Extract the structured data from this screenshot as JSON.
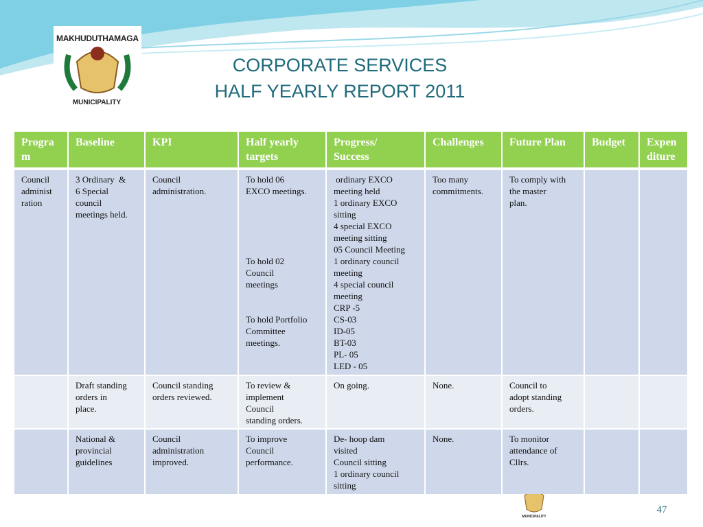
{
  "title": {
    "line1": "CORPORATE SERVICES",
    "line2": "HALF YEARLY REPORT 2011"
  },
  "logo": {
    "name": "MAKHUDUTHAMAGA",
    "subtitle": "MUNICIPALITY"
  },
  "page_number": "47",
  "table": {
    "header": [
      [
        "Progra",
        "m"
      ],
      [
        "Baseline"
      ],
      [
        "KPI"
      ],
      [
        "Half yearly",
        "targets"
      ],
      [
        "Progress/",
        "Success"
      ],
      [
        "Challenges"
      ],
      [
        "Future Plan"
      ],
      [
        "Budget"
      ],
      [
        "Expen",
        "diture"
      ]
    ],
    "rows": [
      [
        [
          "Council",
          "administ",
          "ration"
        ],
        [
          "3 Ordinary  &",
          "6 Special",
          "council",
          "meetings held."
        ],
        [
          "Council",
          "administration."
        ],
        [
          "To hold 06",
          "EXCO meetings.",
          "To hold 02",
          "Council",
          "meetings",
          "To hold Portfolio",
          "Committee",
          "meetings."
        ],
        [
          " ordinary EXCO",
          "meeting held",
          "1 ordinary EXCO",
          "sitting",
          "4 special EXCO",
          "meeting sitting",
          "05 Council Meeting",
          "1 ordinary council",
          "meeting",
          "4 special council",
          "meeting",
          "CRP -5",
          "CS-03",
          "ID-05",
          "BT-03",
          "PL- 05",
          "LED - 05"
        ],
        [
          "Too many",
          "commitments."
        ],
        [
          "To comply with",
          "the master",
          "plan."
        ],
        [],
        []
      ],
      [
        [],
        [
          "Draft standing",
          "orders in",
          "place."
        ],
        [
          "Council standing",
          "orders reviewed."
        ],
        [
          "To review &",
          "implement",
          "Council",
          "standing orders."
        ],
        [
          "On going."
        ],
        [
          "None."
        ],
        [
          "Council to",
          "adopt standing",
          "orders."
        ],
        [],
        []
      ],
      [
        [],
        [
          "National &",
          "provincial",
          "guidelines"
        ],
        [
          "Council",
          "administration",
          "improved."
        ],
        [
          "To improve",
          "Council",
          "performance."
        ],
        [
          "De- hoop dam",
          "visited",
          "Council sitting",
          "1 ordinary council",
          "sitting"
        ],
        [
          "None."
        ],
        [
          "To monitor",
          "attendance of",
          "Cllrs."
        ],
        [],
        []
      ]
    ]
  }
}
